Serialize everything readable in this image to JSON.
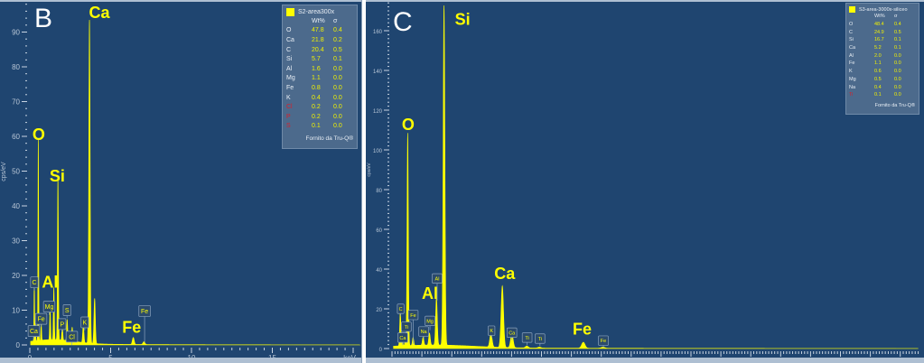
{
  "chart_data": [
    {
      "type": "line",
      "panel_label": "B",
      "xlabel": "keV",
      "ylabel": "cps/eV",
      "xlim": [
        0,
        20.4
      ],
      "ylim": [
        0,
        99
      ],
      "x_ticks": [
        0,
        5,
        10,
        15
      ],
      "y_ticks": [
        0,
        10,
        20,
        30,
        40,
        50,
        60,
        70,
        80,
        90
      ],
      "series_color": "#ffff00",
      "background_color": "#1f4570",
      "peaks": [
        {
          "element": "C",
          "energy": 0.277,
          "height": 17
        },
        {
          "element": "Ca",
          "energy": 0.34,
          "height": 5
        },
        {
          "element": "O",
          "energy": 0.525,
          "height": 58
        },
        {
          "element": "Fe",
          "energy": 0.705,
          "height": 5
        },
        {
          "element": "Mg",
          "energy": 1.254,
          "height": 9
        },
        {
          "element": "Al",
          "energy": 1.487,
          "height": 15
        },
        {
          "element": "Si",
          "energy": 1.74,
          "height": 47
        },
        {
          "element": "P",
          "energy": 2.01,
          "height": 4
        },
        {
          "element": "S",
          "energy": 2.31,
          "height": 6
        },
        {
          "element": "Cl",
          "energy": 2.62,
          "height": 4
        },
        {
          "element": "K",
          "energy": 3.31,
          "height": 5
        },
        {
          "element": "Ca",
          "energy": 3.69,
          "height": 93
        },
        {
          "element": "Ca",
          "energy": 4.01,
          "height": 13
        },
        {
          "element": "Fe",
          "energy": 6.4,
          "height": 2
        },
        {
          "element": "Fe",
          "energy": 7.06,
          "height": 0.8
        }
      ],
      "big_labels": [
        {
          "text": "Ca",
          "energy": 4.3,
          "y": 94
        },
        {
          "text": "O",
          "energy": 0.55,
          "y": 59
        },
        {
          "text": "Si",
          "energy": 1.7,
          "y": 47
        },
        {
          "text": "Al",
          "energy": 1.25,
          "y": 16.5
        },
        {
          "text": "Fe",
          "energy": 6.3,
          "y": 3.5
        }
      ],
      "small_labels": [
        {
          "text": "C",
          "energy": 0.28,
          "y": 18
        },
        {
          "text": "Fe",
          "energy": 0.7,
          "y": 7.5
        },
        {
          "text": "Ca",
          "energy": 0.25,
          "y": 4
        },
        {
          "text": "Mg",
          "energy": 1.2,
          "y": 11
        },
        {
          "text": "S",
          "energy": 2.3,
          "y": 10
        },
        {
          "text": "P",
          "energy": 2.0,
          "y": 6
        },
        {
          "text": "Cl",
          "energy": 2.6,
          "y": 6
        },
        {
          "text": "K",
          "energy": 3.4,
          "y": 6.5
        },
        {
          "text": "Fe",
          "energy": 7.1,
          "y": 3
        }
      ],
      "legend": {
        "title": "S2-area300x",
        "col_wt": "Wt%",
        "col_sigma": "σ",
        "rows": [
          {
            "el": "O",
            "wt": "47.8",
            "sigma": "0.4",
            "flag": false
          },
          {
            "el": "Ca",
            "wt": "21.8",
            "sigma": "0.2",
            "flag": false
          },
          {
            "el": "C",
            "wt": "20.4",
            "sigma": "0.5",
            "flag": false
          },
          {
            "el": "Si",
            "wt": "5.7",
            "sigma": "0.1",
            "flag": false
          },
          {
            "el": "Al",
            "wt": "1.6",
            "sigma": "0.0",
            "flag": false
          },
          {
            "el": "Mg",
            "wt": "1.1",
            "sigma": "0.0",
            "flag": false
          },
          {
            "el": "Fe",
            "wt": "0.8",
            "sigma": "0.0",
            "flag": false
          },
          {
            "el": "K",
            "wt": "0.4",
            "sigma": "0.0",
            "flag": false
          },
          {
            "el": "Cl",
            "wt": "0.2",
            "sigma": "0.0",
            "flag": true
          },
          {
            "el": "P",
            "wt": "0.2",
            "sigma": "0.0",
            "flag": true
          },
          {
            "el": "S",
            "wt": "0.1",
            "sigma": "0.0",
            "flag": true
          }
        ],
        "footer": "Fornito da Tru-Q®"
      }
    },
    {
      "type": "line",
      "panel_label": "C",
      "xlabel": "",
      "ylabel": "cps/eV",
      "xlim": [
        0,
        17.6
      ],
      "ylim": [
        0,
        175
      ],
      "x_ticks": [
        0,
        1,
        2,
        3,
        4,
        5,
        6,
        7,
        8,
        9,
        10,
        11,
        12,
        13,
        14,
        15,
        16,
        17
      ],
      "y_ticks": [
        0,
        20,
        40,
        60,
        80,
        100,
        120,
        140,
        160
      ],
      "series_color": "#ffff00",
      "background_color": "#1f4570",
      "peaks": [
        {
          "element": "C",
          "energy": 0.277,
          "height": 17
        },
        {
          "element": "Ca",
          "energy": 0.34,
          "height": 4
        },
        {
          "element": "Ti",
          "energy": 0.45,
          "height": 3
        },
        {
          "element": "O",
          "energy": 0.525,
          "height": 107
        },
        {
          "element": "Fe",
          "energy": 0.705,
          "height": 4
        },
        {
          "element": "Na",
          "energy": 1.04,
          "height": 4
        },
        {
          "element": "Mg",
          "energy": 1.254,
          "height": 6
        },
        {
          "element": "Al",
          "energy": 1.487,
          "height": 24
        },
        {
          "element": "Si",
          "energy": 1.74,
          "height": 171
        },
        {
          "element": "K",
          "energy": 3.31,
          "height": 7
        },
        {
          "element": "Ca",
          "energy": 3.69,
          "height": 31
        },
        {
          "element": "Ca",
          "energy": 4.01,
          "height": 7
        },
        {
          "element": "Ti",
          "energy": 4.51,
          "height": 1
        },
        {
          "element": "Ti",
          "energy": 4.93,
          "height": 0.5
        },
        {
          "element": "Fe",
          "energy": 6.4,
          "height": 3
        },
        {
          "element": "Fe",
          "energy": 7.06,
          "height": 0.6
        }
      ],
      "big_labels": [
        {
          "text": "Si",
          "energy": 2.36,
          "y": 163
        },
        {
          "text": "O",
          "energy": 0.54,
          "y": 110
        },
        {
          "text": "Ca",
          "energy": 3.77,
          "y": 35
        },
        {
          "text": "Al",
          "energy": 1.27,
          "y": 25
        },
        {
          "text": "Fe",
          "energy": 6.36,
          "y": 7
        }
      ],
      "small_labels": [
        {
          "text": "C",
          "energy": 0.29,
          "y": 20
        },
        {
          "text": "Ti",
          "energy": 0.48,
          "y": 11
        },
        {
          "text": "Ca",
          "energy": 0.36,
          "y": 5.5
        },
        {
          "text": "Fe",
          "energy": 0.71,
          "y": 6
        },
        {
          "text": "Na",
          "energy": 1.06,
          "y": 8.6
        },
        {
          "text": "Mg",
          "energy": 1.27,
          "y": 13
        },
        {
          "text": "Al",
          "energy": 1.51,
          "y": 28
        },
        {
          "text": "K",
          "energy": 3.33,
          "y": 9
        },
        {
          "text": "Ca",
          "energy": 4.01,
          "y": 8
        },
        {
          "text": "Ti",
          "energy": 4.52,
          "y": 5.5
        },
        {
          "text": "Ti",
          "energy": 4.95,
          "y": 5
        },
        {
          "text": "Fe",
          "energy": 7.07,
          "y": 4
        }
      ],
      "legend": {
        "title": "S3-area-3000x-siliceo",
        "col_wt": "Wt%",
        "col_sigma": "σ",
        "rows": [
          {
            "el": "O",
            "wt": "48.4",
            "sigma": "0.4",
            "flag": false
          },
          {
            "el": "C",
            "wt": "24.9",
            "sigma": "0.5",
            "flag": false
          },
          {
            "el": "Si",
            "wt": "16.7",
            "sigma": "0.1",
            "flag": false
          },
          {
            "el": "Ca",
            "wt": "5.2",
            "sigma": "0.1",
            "flag": false
          },
          {
            "el": "Al",
            "wt": "2.0",
            "sigma": "0.0",
            "flag": false
          },
          {
            "el": "Fe",
            "wt": "1.1",
            "sigma": "0.0",
            "flag": false
          },
          {
            "el": "K",
            "wt": "0.6",
            "sigma": "0.0",
            "flag": false
          },
          {
            "el": "Mg",
            "wt": "0.5",
            "sigma": "0.0",
            "flag": false
          },
          {
            "el": "Na",
            "wt": "0.4",
            "sigma": "0.0",
            "flag": false
          },
          {
            "el": "Ti",
            "wt": "0.1",
            "sigma": "0.0",
            "flag": true
          }
        ],
        "footer": "Fornito da Tru-Q®"
      }
    }
  ]
}
